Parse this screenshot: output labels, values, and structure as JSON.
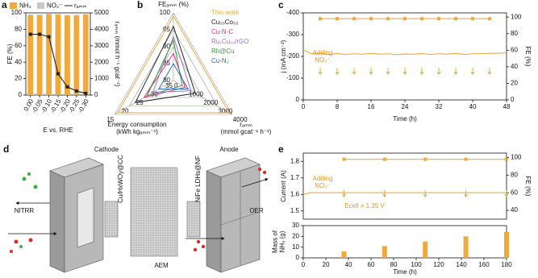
{
  "chart_data": [
    {
      "type": "bar",
      "panel_label": "a",
      "categories": [
        "0.00",
        "-0.05",
        "-0.10",
        "-0.15",
        "-0.20",
        "-0.25",
        "-0.30"
      ],
      "xlabel": "E vs. RHE",
      "ylabel": "FE (%)",
      "y2label": "rₐₘₘ (mmol h⁻¹ gcat⁻¹)",
      "ylim": [
        0,
        100
      ],
      "yticks": [
        0,
        20,
        40,
        60,
        80,
        100
      ],
      "y2lim": [
        0,
        5000
      ],
      "y2ticks": [
        0,
        1000,
        2000,
        3000,
        4000,
        5000
      ],
      "series": [
        {
          "name": "NH₃",
          "color": "#f2a93b",
          "values": [
            97,
            97,
            98,
            98,
            97,
            97,
            98
          ]
        },
        {
          "name": "NO₂⁻",
          "color": "#c8c8c8",
          "values": [
            1,
            1,
            1,
            0.5,
            0.5,
            0.5,
            0.5
          ]
        },
        {
          "name": "rₐₘₘ",
          "color": "#222222",
          "type": "line",
          "axis": "y2",
          "values": [
            3700,
            3700,
            3550,
            1300,
            500,
            250,
            100
          ]
        }
      ]
    },
    {
      "type": "radar",
      "panel_label": "b",
      "axes": [
        {
          "label": [
            "FEₐₘₘ (%)"
          ],
          "lim": [
            80,
            100
          ],
          "ticks": [
            80,
            85,
            90,
            95,
            100
          ]
        },
        {
          "label": [
            "Energy consumption",
            "(kWh kgₐₘₘ⁻¹)"
          ],
          "lim": [
            35,
            15
          ],
          "ticks": [
            35,
            30,
            25,
            20,
            15
          ]
        },
        {
          "label": [
            "rₐₘₘ",
            "(mmol gcat⁻¹ h⁻¹)"
          ],
          "lim": [
            0,
            4000
          ],
          "ticks": [
            0,
            1000,
            2000,
            3000,
            4000
          ]
        }
      ],
      "series": [
        {
          "name": "This work",
          "color": "#f2a93b",
          "values": [
            99,
            16,
            3800
          ]
        },
        {
          "name": "Cu₅₀Co₅₀",
          "color": "#222222",
          "values": [
            96,
            22,
            1500
          ]
        },
        {
          "name": "Cu-N-C",
          "color": "#e0308a",
          "values": [
            88,
            25,
            800
          ]
        },
        {
          "name": "Ru₁Cu₁₀/rGO",
          "color": "#a070c8",
          "values": [
            93,
            28,
            1200
          ]
        },
        {
          "name": "Rh@Cu",
          "color": "#3a9a3a",
          "values": [
            92,
            26,
            600
          ]
        },
        {
          "name": "Cu-N₃",
          "color": "#3070c0",
          "values": [
            85,
            30,
            1000
          ]
        }
      ]
    },
    {
      "type": "line",
      "panel_label": "c",
      "xlabel": "Time (h)",
      "ylabel": "j (mA cm⁻²)",
      "y2label": "FE (%)",
      "xlim": [
        0,
        48
      ],
      "xticks": [
        0,
        8,
        16,
        24,
        32,
        40,
        48
      ],
      "ylim": [
        0,
        -400
      ],
      "yticks": [
        -400,
        -300,
        -200,
        -100,
        0
      ],
      "y2lim": [
        0,
        105
      ],
      "y2ticks": [
        0,
        20,
        40,
        60,
        80,
        100
      ],
      "annotations": [
        "Adding",
        "NO₃⁻"
      ],
      "series": [
        {
          "color": "#f2a93b",
          "x": [
            0,
            2,
            4,
            6,
            8,
            10,
            12,
            14,
            16,
            18,
            20,
            22,
            24,
            26,
            28,
            30,
            32,
            34,
            36,
            38,
            40,
            42,
            44,
            46,
            48
          ],
          "values": [
            -230,
            -212,
            -214,
            -208,
            -213,
            -209,
            -212,
            -210,
            -214,
            -210,
            -212,
            -208,
            -211,
            -210,
            -213,
            -209,
            -212,
            -210,
            -214,
            -209,
            -212,
            -213,
            -214,
            -215,
            -216
          ]
        },
        {
          "color": "#f2a93b",
          "axis": "y2",
          "markers": true,
          "x": [
            4,
            8,
            12,
            16,
            20,
            24,
            28,
            32,
            36,
            40,
            44
          ],
          "values": [
            98,
            98,
            98,
            98,
            98,
            98,
            98,
            98,
            98,
            98,
            98
          ]
        }
      ]
    },
    {
      "type": "line",
      "panel_label": "e",
      "ylabel": "Current (A)",
      "y2label": "FE (%)",
      "xlim": [
        0,
        180
      ],
      "ylim": [
        1.45,
        1.85
      ],
      "yticks": [
        1.5,
        1.6,
        1.7,
        1.8
      ],
      "y2lim": [
        30,
        105
      ],
      "y2ticks": [
        40,
        60,
        80,
        100
      ],
      "annotations": [
        "Adding",
        "NO₃⁻",
        "Ecell = 1.35 V"
      ],
      "series": [
        {
          "color": "#f2a93b",
          "x": [
            0,
            6,
            12,
            18,
            24,
            30,
            36,
            42,
            48,
            54,
            60,
            66,
            72,
            78,
            84,
            90,
            96,
            102,
            108,
            114,
            120,
            126,
            132,
            138,
            144,
            150,
            156,
            162,
            168,
            174,
            180
          ],
          "values": [
            1.6,
            1.61,
            1.61,
            1.61,
            1.61,
            1.61,
            1.61,
            1.61,
            1.61,
            1.61,
            1.61,
            1.61,
            1.61,
            1.61,
            1.61,
            1.61,
            1.61,
            1.61,
            1.61,
            1.61,
            1.61,
            1.61,
            1.61,
            1.61,
            1.61,
            1.61,
            1.61,
            1.61,
            1.61,
            1.61,
            1.61
          ]
        },
        {
          "color": "#f2a93b",
          "axis": "y2",
          "markers": true,
          "x": [
            36,
            72,
            108,
            144,
            180
          ],
          "values": [
            98,
            98,
            98,
            98,
            98
          ]
        }
      ]
    },
    {
      "type": "bar",
      "xlabel": "Time (h)",
      "ylabel": [
        "Mass of",
        "NH₃ (g)"
      ],
      "xlim": [
        0,
        180
      ],
      "xticks": [
        0,
        20,
        40,
        60,
        80,
        100,
        120,
        140,
        160,
        180
      ],
      "ylim": [
        0,
        30
      ],
      "yticks": [
        0,
        10,
        20,
        30
      ],
      "x": [
        36,
        72,
        108,
        144,
        180
      ],
      "series": [
        {
          "color": "#f2a93b",
          "values": [
            6,
            11,
            15,
            20,
            24
          ]
        }
      ]
    }
  ],
  "diagram": {
    "panel_label": "d",
    "cathode": "Cathode",
    "anode": "Anode",
    "cathode_catalyst": "Cu/HxWOy@CC",
    "anode_catalyst": "NiFe LDHs@NF",
    "membrane": "AEM",
    "cathode_reaction": "NITRR",
    "anode_reaction": "OER"
  }
}
